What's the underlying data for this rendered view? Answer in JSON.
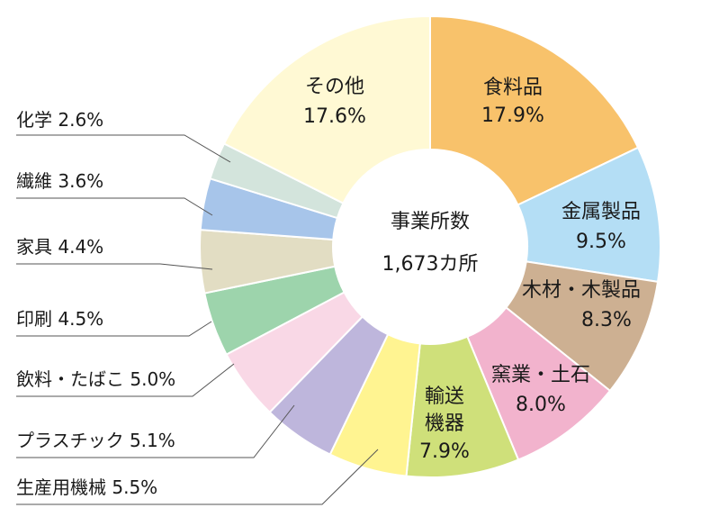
{
  "chart_data": {
    "type": "pie",
    "center_label": [
      "事業所数",
      "1,673カ所"
    ],
    "slices": [
      {
        "label": "食料品",
        "value": 17.9,
        "value_text": "17.9%",
        "color": "#f8c26b"
      },
      {
        "label": "金属製品",
        "value": 9.5,
        "value_text": "9.5%",
        "color": "#b4def5"
      },
      {
        "label": "木材・木製品",
        "value": 8.3,
        "value_text": "8.3%",
        "color": "#cdb092"
      },
      {
        "label": "窯業・土石",
        "value": 8.0,
        "value_text": "8.0%",
        "color": "#f2b3cd"
      },
      {
        "label": "輸送機器",
        "value": 7.9,
        "value_text": "7.9%",
        "color": "#cfe07a"
      },
      {
        "label": "生産用機械",
        "value": 5.5,
        "value_text": "5.5%",
        "color": "#fff491"
      },
      {
        "label": "プラスチック",
        "value": 5.1,
        "value_text": "5.1%",
        "color": "#beb6dc"
      },
      {
        "label": "飲料・たばこ",
        "value": 5.0,
        "value_text": "5.0%",
        "color": "#f9d8e6"
      },
      {
        "label": "印刷",
        "value": 4.5,
        "value_text": "4.5%",
        "color": "#9dd4ac"
      },
      {
        "label": "家具",
        "value": 4.4,
        "value_text": "4.4%",
        "color": "#e2ddc3"
      },
      {
        "label": "繊維",
        "value": 3.6,
        "value_text": "3.6%",
        "color": "#a7c5ea"
      },
      {
        "label": "化学",
        "value": 2.6,
        "value_text": "2.6%",
        "color": "#d3e4dc"
      },
      {
        "label": "その他",
        "value": 17.6,
        "value_text": "17.6%",
        "color": "#fff9d4"
      }
    ]
  }
}
